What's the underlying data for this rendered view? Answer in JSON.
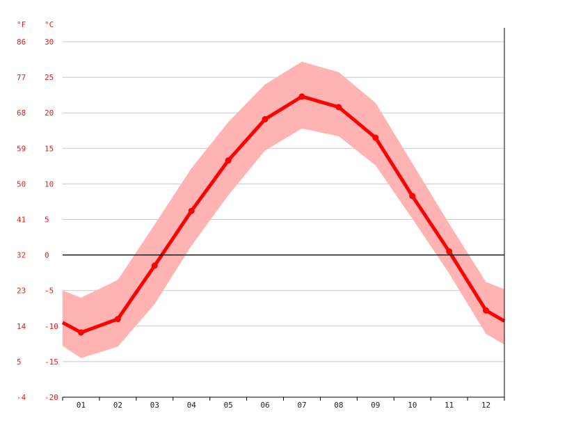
{
  "chart_data": {
    "type": "line",
    "title": "",
    "xlabel": "",
    "ylabel": "",
    "units": {
      "left": "°F",
      "right": "°C"
    },
    "categories": [
      "01",
      "02",
      "03",
      "04",
      "05",
      "06",
      "07",
      "08",
      "09",
      "10",
      "11",
      "12"
    ],
    "ylim": [
      -20,
      30
    ],
    "y_ticks_c": [
      "30",
      "25",
      "20",
      "15",
      "10",
      "5",
      "0",
      "-5",
      "-10",
      "-15",
      "-20"
    ],
    "y_ticks_f": [
      "86",
      "77",
      "68",
      "59",
      "50",
      "41",
      "32",
      "23",
      "14",
      "5",
      "-4"
    ],
    "grid": true,
    "series": [
      {
        "values": [
          -10.9,
          -9.0,
          -1.5,
          6.2,
          13.3,
          19.1,
          22.3,
          20.8,
          16.5,
          8.3,
          0.5,
          -7.8
        ]
      }
    ],
    "band": {
      "upper": [
        -6.0,
        -3.5,
        4.3,
        12.2,
        18.7,
        24.0,
        27.2,
        25.7,
        21.4,
        12.9,
        4.4,
        -3.8
      ],
      "lower": [
        -14.5,
        -12.9,
        -6.9,
        1.3,
        8.4,
        14.7,
        17.8,
        16.7,
        12.6,
        5.1,
        -2.6,
        -11.1
      ],
      "edge_start": {
        "upper": -5.0,
        "lower": -12.8
      },
      "edge_end": {
        "upper": -4.8,
        "lower": -12.6
      }
    },
    "line_edges": {
      "start": -9.5,
      "end": -9.3
    },
    "colors": {
      "line": "#ff0000",
      "band": "#ffb3b3",
      "axis_text": "#e0201c",
      "grid": "#c8c8c8",
      "zero_line": "#000000"
    }
  }
}
